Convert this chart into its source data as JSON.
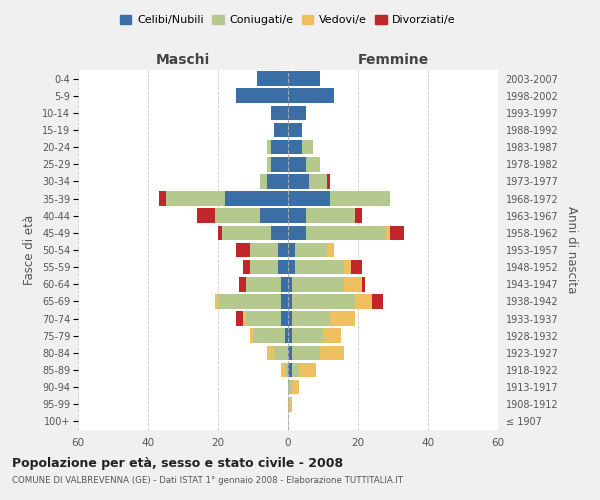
{
  "age_groups": [
    "100+",
    "95-99",
    "90-94",
    "85-89",
    "80-84",
    "75-79",
    "70-74",
    "65-69",
    "60-64",
    "55-59",
    "50-54",
    "45-49",
    "40-44",
    "35-39",
    "30-34",
    "25-29",
    "20-24",
    "15-19",
    "10-14",
    "5-9",
    "0-4"
  ],
  "birth_years": [
    "≤ 1907",
    "1908-1912",
    "1913-1917",
    "1918-1922",
    "1923-1927",
    "1928-1932",
    "1933-1937",
    "1938-1942",
    "1943-1947",
    "1948-1952",
    "1953-1957",
    "1958-1962",
    "1963-1967",
    "1968-1972",
    "1973-1977",
    "1978-1982",
    "1983-1987",
    "1988-1992",
    "1993-1997",
    "1998-2002",
    "2003-2007"
  ],
  "colors": {
    "celibi": "#3a6ea5",
    "coniugati": "#b5c98e",
    "vedovi": "#f0c060",
    "divorziati": "#c0262a"
  },
  "maschi": {
    "celibi": [
      0,
      0,
      0,
      0,
      0,
      1,
      2,
      2,
      2,
      3,
      3,
      5,
      8,
      18,
      6,
      5,
      5,
      4,
      5,
      15,
      9
    ],
    "coniugati": [
      0,
      0,
      0,
      1,
      4,
      9,
      10,
      18,
      10,
      8,
      8,
      14,
      13,
      17,
      2,
      1,
      1,
      0,
      0,
      0,
      0
    ],
    "vedovi": [
      0,
      0,
      0,
      1,
      2,
      1,
      1,
      1,
      0,
      0,
      0,
      0,
      0,
      0,
      0,
      0,
      0,
      0,
      0,
      0,
      0
    ],
    "divorziati": [
      0,
      0,
      0,
      0,
      0,
      0,
      2,
      0,
      2,
      2,
      4,
      1,
      5,
      2,
      0,
      0,
      0,
      0,
      0,
      0,
      0
    ]
  },
  "femmine": {
    "celibi": [
      0,
      0,
      0,
      1,
      1,
      1,
      1,
      1,
      1,
      2,
      2,
      5,
      5,
      12,
      6,
      5,
      4,
      4,
      5,
      13,
      9
    ],
    "coniugati": [
      0,
      0,
      1,
      2,
      8,
      9,
      11,
      18,
      15,
      14,
      9,
      23,
      14,
      17,
      5,
      4,
      3,
      0,
      0,
      0,
      0
    ],
    "vedovi": [
      0,
      1,
      2,
      5,
      7,
      5,
      7,
      5,
      5,
      2,
      2,
      1,
      0,
      0,
      0,
      0,
      0,
      0,
      0,
      0,
      0
    ],
    "divorziati": [
      0,
      0,
      0,
      0,
      0,
      0,
      0,
      3,
      1,
      3,
      0,
      4,
      2,
      0,
      1,
      0,
      0,
      0,
      0,
      0,
      0
    ]
  },
  "xlim": 60,
  "title": "Popolazione per età, sesso e stato civile - 2008",
  "subtitle": "COMUNE DI VALBREVENNA (GE) - Dati ISTAT 1° gennaio 2008 - Elaborazione TUTTITALIA.IT",
  "ylabel_left": "Fasce di età",
  "ylabel_right": "Anni di nascita",
  "xlabel_maschi": "Maschi",
  "xlabel_femmine": "Femmine",
  "legend_labels": [
    "Celibi/Nubili",
    "Coniugati/e",
    "Vedovi/e",
    "Divorziati/e"
  ],
  "bg_color": "#f0f0f0",
  "plot_bg": "#ffffff"
}
